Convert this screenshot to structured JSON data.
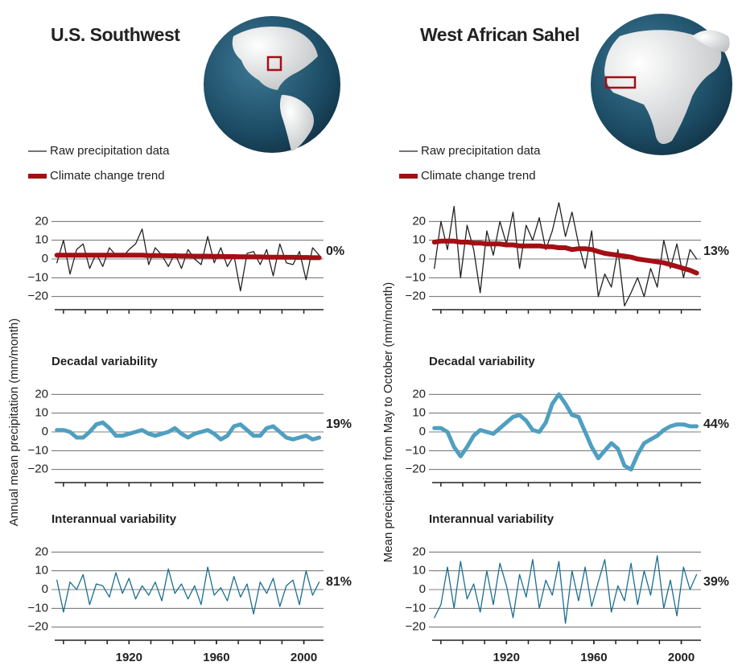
{
  "regions": [
    {
      "title": "U.S. Southwest",
      "ylabel": "Annual mean precipitation (mm/month)"
    },
    {
      "title": "West African Sahel",
      "ylabel": "Mean precipitation from May to October (mm/month)"
    }
  ],
  "chart_data": [
    {
      "type": "line",
      "annotation": "0%",
      "x": [
        1887,
        1890,
        1893,
        1896,
        1899,
        1902,
        1905,
        1908,
        1911,
        1914,
        1917,
        1920,
        1923,
        1926,
        1929,
        1932,
        1935,
        1938,
        1941,
        1944,
        1947,
        1950,
        1953,
        1956,
        1959,
        1962,
        1965,
        1968,
        1971,
        1974,
        1977,
        1980,
        1983,
        1986,
        1989,
        1992,
        1995,
        1998,
        2001,
        2004,
        2007
      ],
      "series": [
        {
          "name": "Raw precipitation data",
          "color": "#222222",
          "width": 1.3,
          "values": [
            -2,
            10,
            -8,
            5,
            8,
            -5,
            3,
            -4,
            6,
            2,
            1,
            5,
            8,
            16,
            -3,
            6,
            2,
            -4,
            3,
            -5,
            5,
            0,
            -3,
            12,
            -2,
            6,
            -4,
            2,
            -17,
            3,
            4,
            -3,
            5,
            -9,
            8,
            -2,
            -3,
            4,
            -11,
            6,
            2
          ]
        },
        {
          "name": "Climate change trend",
          "color": "#a30f14",
          "width": 6,
          "values": [
            2,
            2,
            2,
            2,
            2,
            2,
            2,
            2,
            2,
            2,
            2,
            2,
            2,
            2,
            1.8,
            1.8,
            1.8,
            1.7,
            1.7,
            1.6,
            1.6,
            1.5,
            1.5,
            1.5,
            1.4,
            1.4,
            1.3,
            1.3,
            1.2,
            1.2,
            1.1,
            1.1,
            1,
            1,
            1,
            0.9,
            0.9,
            0.8,
            0.8,
            0.7,
            0.7
          ]
        }
      ],
      "xlim": [
        1886,
        2009
      ],
      "ylim": [
        -27,
        24
      ],
      "yticks": [
        {
          "value": -20,
          "label": "−20"
        },
        {
          "value": -10,
          "label": "−10"
        },
        0,
        10,
        20
      ],
      "xminor_ticks": [
        1890,
        1900,
        1910,
        1920,
        1930,
        1940,
        1950,
        1960,
        1970,
        1980,
        1990,
        2000
      ],
      "grid": true
    },
    {
      "type": "line",
      "title": "Decadal variability",
      "annotation": "19%",
      "x": [
        1887,
        1890,
        1893,
        1896,
        1899,
        1902,
        1905,
        1908,
        1911,
        1914,
        1917,
        1920,
        1923,
        1926,
        1929,
        1932,
        1935,
        1938,
        1941,
        1944,
        1947,
        1950,
        1953,
        1956,
        1959,
        1962,
        1965,
        1968,
        1971,
        1974,
        1977,
        1980,
        1983,
        1986,
        1989,
        1992,
        1995,
        1998,
        2001,
        2004,
        2007
      ],
      "series": [
        {
          "color": "#4f9fc0",
          "width": 5,
          "values": [
            1,
            1,
            0,
            -3,
            -3,
            0,
            4,
            5,
            2,
            -2,
            -2,
            -1,
            0,
            1,
            -1,
            -2,
            -1,
            0,
            2,
            -1,
            -3,
            -1,
            0,
            1,
            -1,
            -4,
            -2,
            3,
            4,
            1,
            -2,
            -2,
            2,
            3,
            0,
            -3,
            -4,
            -3,
            -2,
            -4,
            -3
          ]
        }
      ],
      "xlim": [
        1886,
        2009
      ],
      "ylim": [
        -27,
        24
      ],
      "yticks": [
        {
          "value": -20,
          "label": "−20"
        },
        {
          "value": -10,
          "label": "−10"
        },
        0,
        10,
        20
      ],
      "xminor_ticks": [
        1890,
        1900,
        1910,
        1920,
        1930,
        1940,
        1950,
        1960,
        1970,
        1980,
        1990,
        2000
      ],
      "grid": true
    },
    {
      "type": "line",
      "title": "Interannual variability",
      "annotation": "81%",
      "x": [
        1887,
        1890,
        1893,
        1896,
        1899,
        1902,
        1905,
        1908,
        1911,
        1914,
        1917,
        1920,
        1923,
        1926,
        1929,
        1932,
        1935,
        1938,
        1941,
        1944,
        1947,
        1950,
        1953,
        1956,
        1959,
        1962,
        1965,
        1968,
        1971,
        1974,
        1977,
        1980,
        1983,
        1986,
        1989,
        1992,
        1995,
        1998,
        2001,
        2004,
        2007
      ],
      "series": [
        {
          "color": "#1b6e90",
          "width": 1.3,
          "values": [
            5,
            -12,
            4,
            0,
            8,
            -8,
            3,
            2,
            -4,
            9,
            -2,
            6,
            -5,
            2,
            -3,
            4,
            -6,
            11,
            -2,
            3,
            -5,
            2,
            -8,
            12,
            -3,
            1,
            -6,
            7,
            -4,
            3,
            -13,
            4,
            -2,
            6,
            -9,
            2,
            5,
            -8,
            10,
            -3,
            4
          ]
        }
      ],
      "xlim": [
        1886,
        2009
      ],
      "ylim": [
        -27,
        24
      ],
      "yticks": [
        {
          "value": -20,
          "label": "−20"
        },
        {
          "value": -10,
          "label": "−10"
        },
        0,
        10,
        20
      ],
      "xminor_ticks": [
        1890,
        1900,
        1910,
        1920,
        1930,
        1940,
        1950,
        1960,
        1970,
        1980,
        1990,
        2000
      ],
      "xticks": [
        1920,
        1960,
        2000
      ],
      "grid": true
    },
    {
      "type": "line",
      "annotation": "13%",
      "x": [
        1887,
        1890,
        1893,
        1896,
        1899,
        1902,
        1905,
        1908,
        1911,
        1914,
        1917,
        1920,
        1923,
        1926,
        1929,
        1932,
        1935,
        1938,
        1941,
        1944,
        1947,
        1950,
        1953,
        1956,
        1959,
        1962,
        1965,
        1968,
        1971,
        1974,
        1977,
        1980,
        1983,
        1986,
        1989,
        1992,
        1995,
        1998,
        2001,
        2004,
        2007
      ],
      "series": [
        {
          "name": "Raw precipitation data",
          "color": "#222222",
          "width": 1.3,
          "values": [
            -5,
            20,
            5,
            28,
            -10,
            18,
            5,
            -18,
            15,
            2,
            20,
            8,
            25,
            -5,
            18,
            10,
            22,
            5,
            15,
            30,
            12,
            25,
            8,
            -5,
            15,
            -20,
            -8,
            -15,
            5,
            -25,
            -18,
            -10,
            -20,
            -5,
            -15,
            10,
            -5,
            8,
            -10,
            5,
            0
          ]
        },
        {
          "name": "Climate change trend",
          "color": "#a30f14",
          "width": 6,
          "values": [
            9,
            9.5,
            9.5,
            9.5,
            9,
            9,
            8.5,
            8.5,
            8,
            8,
            8,
            7.5,
            7.5,
            7,
            7,
            7,
            7,
            6.5,
            6.5,
            6,
            6,
            5,
            5.5,
            5.5,
            5,
            4,
            3,
            2.5,
            2,
            1.5,
            1,
            0,
            -0.5,
            -1,
            -1.5,
            -2,
            -3,
            -4,
            -5,
            -6,
            -7.5
          ]
        }
      ],
      "xlim": [
        1886,
        2009
      ],
      "ylim": [
        -27,
        24
      ],
      "yticks": [
        {
          "value": -20,
          "label": "−20"
        },
        {
          "value": -10,
          "label": "−10"
        },
        0,
        10,
        20
      ],
      "xminor_ticks": [
        1890,
        1900,
        1910,
        1920,
        1930,
        1940,
        1950,
        1960,
        1970,
        1980,
        1990,
        2000
      ],
      "grid": true
    },
    {
      "type": "line",
      "title": "Decadal variability",
      "annotation": "44%",
      "x": [
        1887,
        1890,
        1893,
        1896,
        1899,
        1902,
        1905,
        1908,
        1911,
        1914,
        1917,
        1920,
        1923,
        1926,
        1929,
        1932,
        1935,
        1938,
        1941,
        1944,
        1947,
        1950,
        1953,
        1956,
        1959,
        1962,
        1965,
        1968,
        1971,
        1974,
        1977,
        1980,
        1983,
        1986,
        1989,
        1992,
        1995,
        1998,
        2001,
        2004,
        2007
      ],
      "series": [
        {
          "color": "#4f9fc0",
          "width": 5,
          "values": [
            2,
            2,
            0,
            -8,
            -13,
            -8,
            -2,
            1,
            0,
            -1,
            2,
            5,
            8,
            9,
            6,
            1,
            0,
            5,
            15,
            20,
            15,
            9,
            8,
            0,
            -8,
            -14,
            -10,
            -6,
            -9,
            -18,
            -20,
            -12,
            -6,
            -4,
            -2,
            1,
            3,
            4,
            4,
            3,
            3
          ]
        }
      ],
      "xlim": [
        1886,
        2009
      ],
      "ylim": [
        -27,
        24
      ],
      "yticks": [
        {
          "value": -20,
          "label": "−20"
        },
        {
          "value": -10,
          "label": "−10"
        },
        0,
        10,
        20
      ],
      "xminor_ticks": [
        1890,
        1900,
        1910,
        1920,
        1930,
        1940,
        1950,
        1960,
        1970,
        1980,
        1990,
        2000
      ],
      "grid": true
    },
    {
      "type": "line",
      "title": "Interannual variability",
      "annotation": "39%",
      "x": [
        1887,
        1890,
        1893,
        1896,
        1899,
        1902,
        1905,
        1908,
        1911,
        1914,
        1917,
        1920,
        1923,
        1926,
        1929,
        1932,
        1935,
        1938,
        1941,
        1944,
        1947,
        1950,
        1953,
        1956,
        1959,
        1962,
        1965,
        1968,
        1971,
        1974,
        1977,
        1980,
        1983,
        1986,
        1989,
        1992,
        1995,
        1998,
        2001,
        2004,
        2007
      ],
      "series": [
        {
          "color": "#1b6e90",
          "width": 1.3,
          "values": [
            -15,
            -8,
            12,
            -10,
            15,
            -5,
            3,
            -12,
            10,
            -8,
            14,
            2,
            -15,
            8,
            -4,
            16,
            -10,
            5,
            -3,
            15,
            -18,
            10,
            -6,
            12,
            -9,
            4,
            16,
            -12,
            2,
            -6,
            14,
            -8,
            10,
            -3,
            18,
            -10,
            5,
            -14,
            12,
            0,
            8
          ]
        }
      ],
      "xlim": [
        1886,
        2009
      ],
      "ylim": [
        -27,
        24
      ],
      "yticks": [
        {
          "value": -20,
          "label": "−20"
        },
        {
          "value": -10,
          "label": "−10"
        },
        0,
        10,
        20
      ],
      "xminor_ticks": [
        1890,
        1900,
        1910,
        1920,
        1930,
        1940,
        1950,
        1960,
        1970,
        1980,
        1990,
        2000
      ],
      "xticks": [
        1920,
        1960,
        2000
      ],
      "grid": true
    }
  ]
}
